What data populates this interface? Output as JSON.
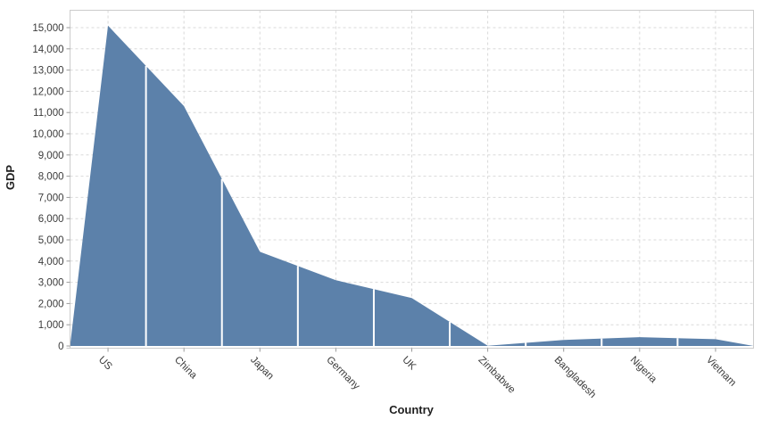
{
  "chart_data": {
    "type": "area",
    "title": "",
    "xlabel": "Country",
    "ylabel": "GDP",
    "categories": [
      "US",
      "China",
      "Japan",
      "Germany",
      "UK",
      "Zimbabwe",
      "Bangladesh",
      "Nigeria",
      "Vietnam"
    ],
    "values": [
      15094,
      11300,
      4440,
      3099,
      2261,
      10,
      284,
      415,
      320
    ],
    "ylim": [
      0,
      15800
    ],
    "ytick_step": 1000,
    "y_ticks": [
      "0",
      "1,000",
      "2,000",
      "3,000",
      "4,000",
      "5,000",
      "6,000",
      "7,000",
      "8,000",
      "9,000",
      "10,000",
      "11,000",
      "12,000",
      "13,000",
      "14,000",
      "15,000"
    ],
    "grid": true,
    "legend": false,
    "x_label_rotation_deg": 45,
    "colors": {
      "area": "#5c81aa",
      "separator": "#ffffff",
      "grid": "#d9d9d9",
      "border": "#cccccc",
      "tick": "#9a9a9a",
      "text": "#3b3b3b",
      "background": "#ffffff"
    }
  }
}
